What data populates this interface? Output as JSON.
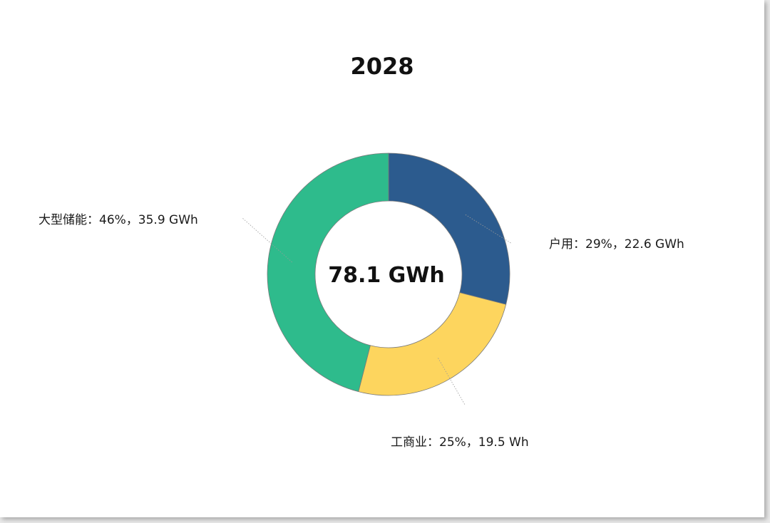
{
  "chart_data": {
    "type": "pie",
    "title": "2028",
    "center_label": "78.1 GWh",
    "slices": [
      {
        "name": "户用",
        "percent": 29,
        "value": 22.6,
        "label": "户用：29%，22.6 GWh",
        "color": "#2c5b8e"
      },
      {
        "name": "工商业",
        "percent": 25,
        "value": 19.5,
        "label": "工商业：25%，19.5 Wh",
        "color": "#fdd55e"
      },
      {
        "name": "大型储能",
        "percent": 46,
        "value": 35.9,
        "label": "大型储能：46%，35.9 GWh",
        "color": "#2ebb8c"
      }
    ],
    "donut": true,
    "legend": "none"
  }
}
